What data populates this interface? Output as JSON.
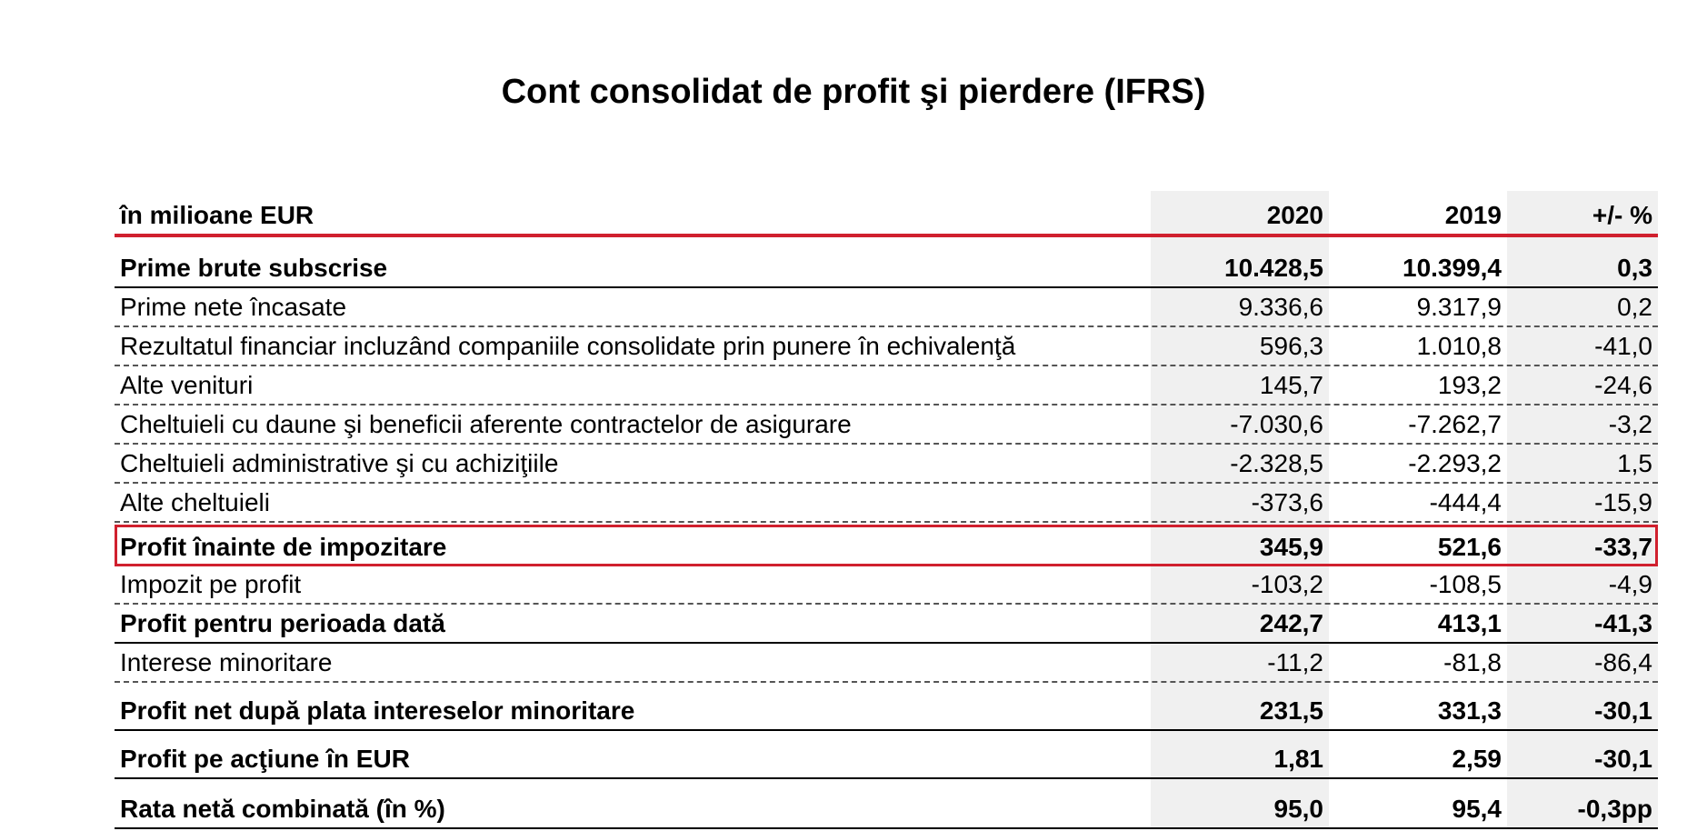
{
  "title": "Cont consolidat de profit şi pierdere (IFRS)",
  "header": {
    "label": "în milioane EUR",
    "col_2020": "2020",
    "col_2019": "2019",
    "col_pct": "+/- %"
  },
  "rows": [
    {
      "label": "Prime brute subscrise",
      "v2020": "10.428,5",
      "v2019": "10.399,4",
      "pct": "0,3"
    },
    {
      "label": "Prime nete încasate",
      "v2020": "9.336,6",
      "v2019": "9.317,9",
      "pct": "0,2"
    },
    {
      "label": "Rezultatul financiar incluzând companiile consolidate prin punere în echivalenţă",
      "v2020": "596,3",
      "v2019": "1.010,8",
      "pct": "-41,0"
    },
    {
      "label": "Alte venituri",
      "v2020": "145,7",
      "v2019": "193,2",
      "pct": "-24,6"
    },
    {
      "label": "Cheltuieli cu daune şi beneficii aferente contractelor de asigurare",
      "v2020": "-7.030,6",
      "v2019": "-7.262,7",
      "pct": "-3,2"
    },
    {
      "label": "Cheltuieli administrative şi cu achiziţiile",
      "v2020": "-2.328,5",
      "v2019": "-2.293,2",
      "pct": "1,5"
    },
    {
      "label": "Alte cheltuieli",
      "v2020": "-373,6",
      "v2019": "-444,4",
      "pct": "-15,9"
    },
    {
      "label": "Profit înainte de impozitare",
      "v2020": "345,9",
      "v2019": "521,6",
      "pct": "-33,7"
    },
    {
      "label": "Impozit pe profit",
      "v2020": "-103,2",
      "v2019": "-108,5",
      "pct": "-4,9"
    },
    {
      "label": "Profit pentru perioada dată",
      "v2020": "242,7",
      "v2019": "413,1",
      "pct": "-41,3"
    },
    {
      "label": "Interese minoritare",
      "v2020": "-11,2",
      "v2019": "-81,8",
      "pct": "-86,4"
    },
    {
      "label": "Profit net după plata intereselor minoritare",
      "v2020": "231,5",
      "v2019": "331,3",
      "pct": "-30,1"
    },
    {
      "label": "Profit pe acţiune în EUR",
      "v2020": "1,81",
      "v2019": "2,59",
      "pct": "-30,1"
    },
    {
      "label": "Rata netă combinată (în %)",
      "v2020": "95,0",
      "v2019": "95,4",
      "pct": "-0,3pp"
    }
  ],
  "colors": {
    "accent": "#d0202e",
    "shade": "#f0f0f0"
  }
}
